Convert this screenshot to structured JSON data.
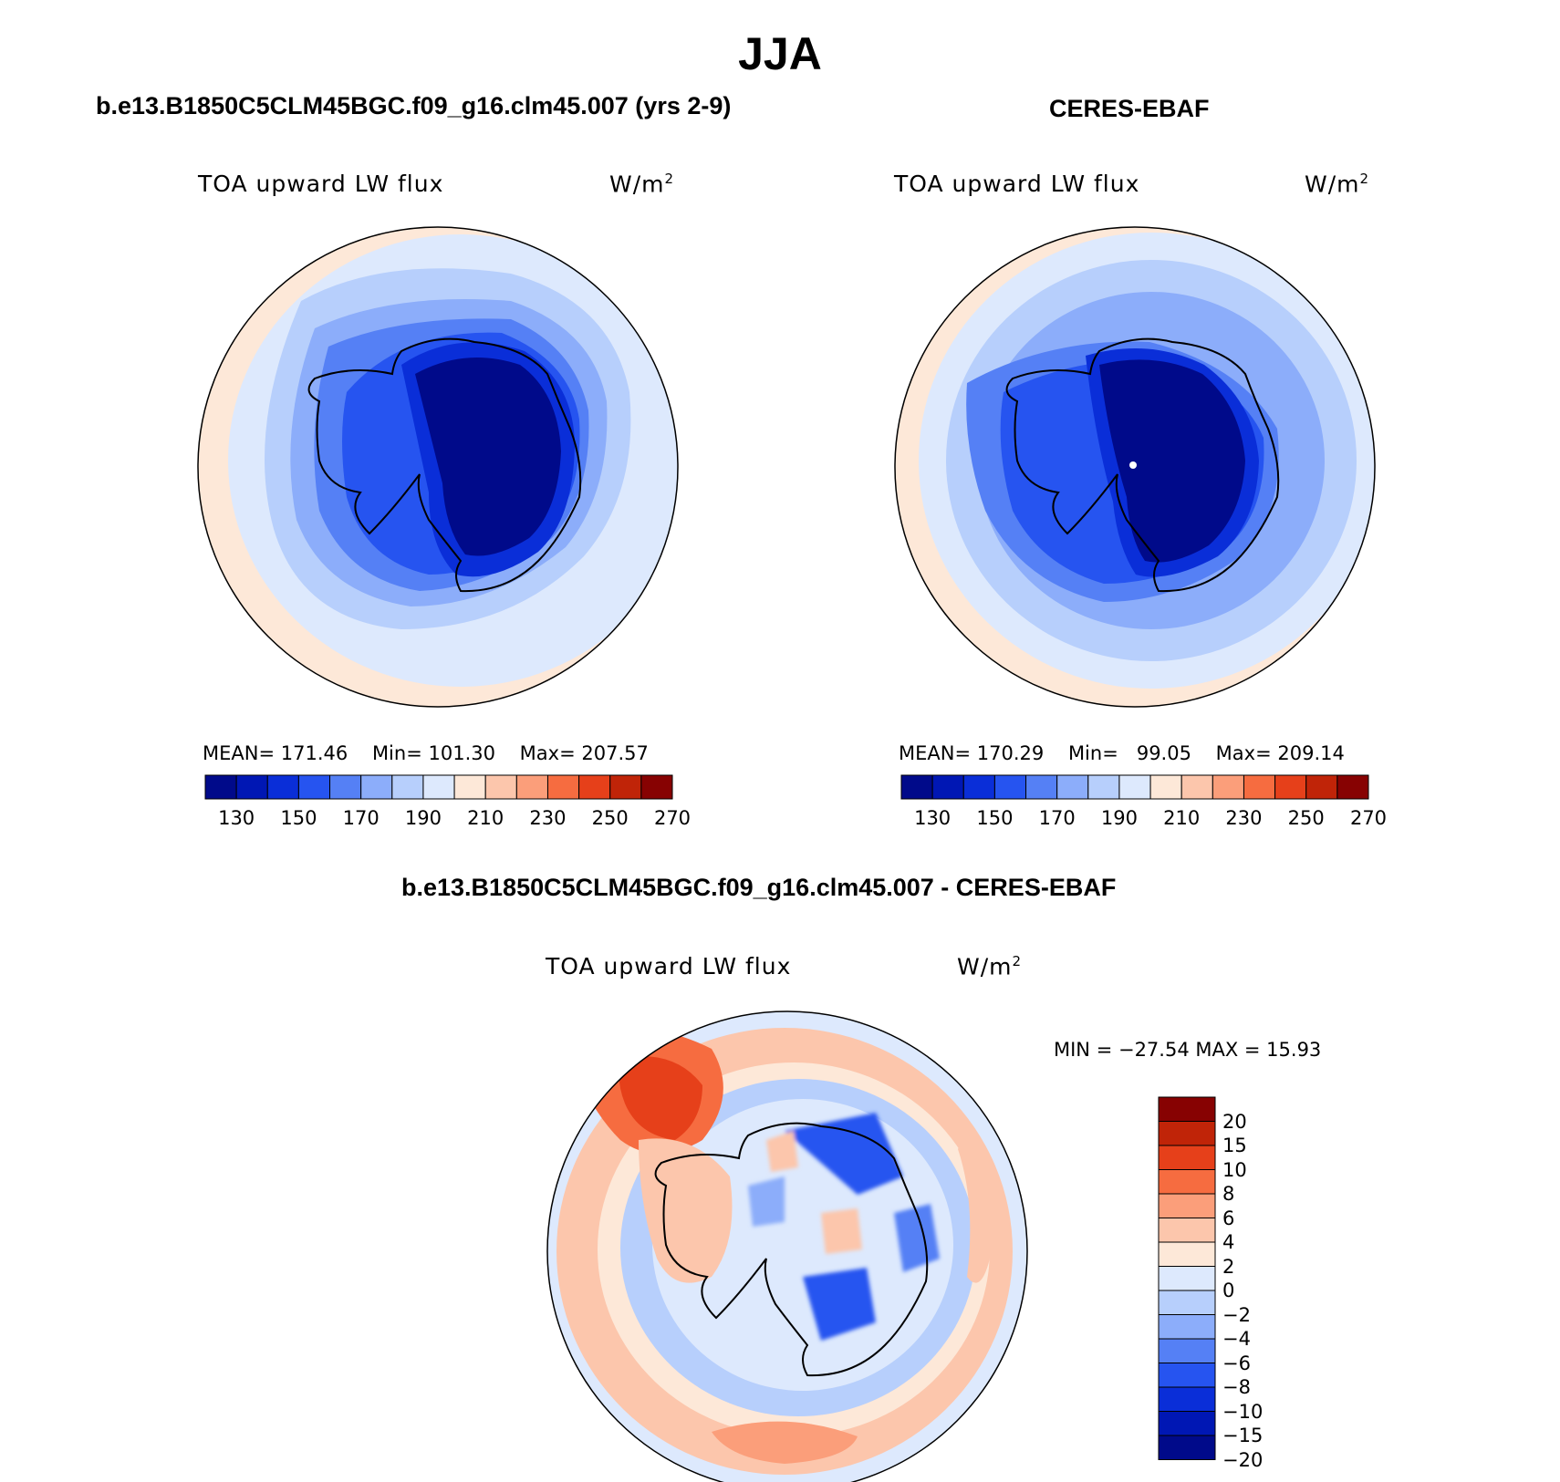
{
  "season": "JJA",
  "panels": [
    {
      "case_title": "b.e13.B1850C5CLM45BGC.f09_g16.clm45.007 (yrs 2-9)",
      "field": "TOA upward LW flux",
      "units_base": "W/m",
      "units_exp": "2",
      "stats": {
        "mean_label": "MEAN=",
        "mean": "171.46",
        "min_label": "Min=",
        "min": "101.30",
        "max_label": "Max=",
        "max": "207.57"
      }
    },
    {
      "case_title": "CERES-EBAF",
      "field": "TOA upward LW flux",
      "units_base": "W/m",
      "units_exp": "2",
      "stats": {
        "mean_label": "MEAN=",
        "mean": "170.29",
        "min_label": "Min=",
        "min": "99.05",
        "max_label": "Max=",
        "max": "209.14"
      }
    },
    {
      "case_title": "b.e13.B1850C5CLM45BGC.f09_g16.clm45.007 - CERES-EBAF",
      "field": "TOA upward LW flux",
      "units_base": "W/m",
      "units_exp": "2",
      "stats_text": "MIN = −27.54 MAX =   15.93"
    }
  ],
  "abs_colorbar": {
    "colors": [
      "#000a8a",
      "#0017b4",
      "#0a2ed8",
      "#2654f0",
      "#5580f5",
      "#8cadfa",
      "#b7cffc",
      "#dde9fd",
      "#fde8d8",
      "#fcc6ac",
      "#fb9e7a",
      "#f66c40",
      "#e6401a",
      "#c02408",
      "#870202"
    ],
    "labels": [
      "130",
      "150",
      "170",
      "190",
      "210",
      "230",
      "250",
      "270"
    ]
  },
  "diff_colorbar": {
    "colors": [
      "#870202",
      "#c02408",
      "#e6401a",
      "#f66c40",
      "#fb9e7a",
      "#fcc6ac",
      "#fde8d8",
      "#dde9fd",
      "#b7cffc",
      "#8cadfa",
      "#5580f5",
      "#2654f0",
      "#0a2ed8",
      "#0017b4",
      "#000a8a"
    ],
    "labels": [
      "20",
      "15",
      "10",
      "8",
      "6",
      "4",
      "2",
      "0",
      "−2",
      "−4",
      "−6",
      "−8",
      "−10",
      "−15",
      "−20"
    ]
  }
}
